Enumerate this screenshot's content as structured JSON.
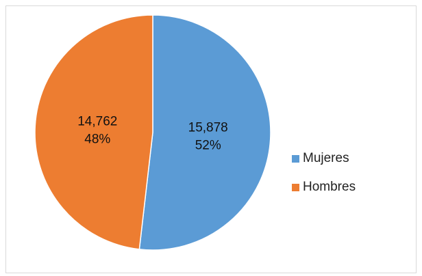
{
  "chart_data": {
    "type": "pie",
    "categories": [
      "Mujeres",
      "Hombres"
    ],
    "values": [
      15878,
      14762
    ],
    "value_labels": [
      "15,878",
      "14,762"
    ],
    "percent_labels": [
      "52%",
      "48%"
    ],
    "colors": [
      "#5b9bd5",
      "#ed7d31"
    ],
    "title": "",
    "legend_position": "right"
  }
}
